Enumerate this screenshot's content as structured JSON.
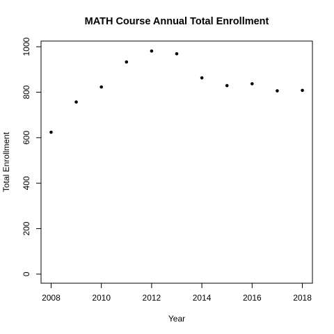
{
  "chart_data": {
    "type": "scatter",
    "title": "MATH Course Annual Total Enrollment",
    "xlabel": "Year",
    "ylabel": "Total Enrollment",
    "x": [
      2008,
      2009,
      2010,
      2011,
      2012,
      2013,
      2014,
      2015,
      2016,
      2017,
      2018
    ],
    "y": [
      624,
      757,
      823,
      933,
      981,
      969,
      863,
      829,
      837,
      806,
      808
    ],
    "xlim": [
      2007.6,
      2018.4
    ],
    "ylim": [
      -40,
      1025
    ],
    "xticks": [
      2008,
      2010,
      2012,
      2014,
      2016,
      2018
    ],
    "yticks": [
      0,
      200,
      400,
      600,
      800,
      1000
    ],
    "grid": false,
    "legend": "none",
    "point_color": "#000000"
  }
}
